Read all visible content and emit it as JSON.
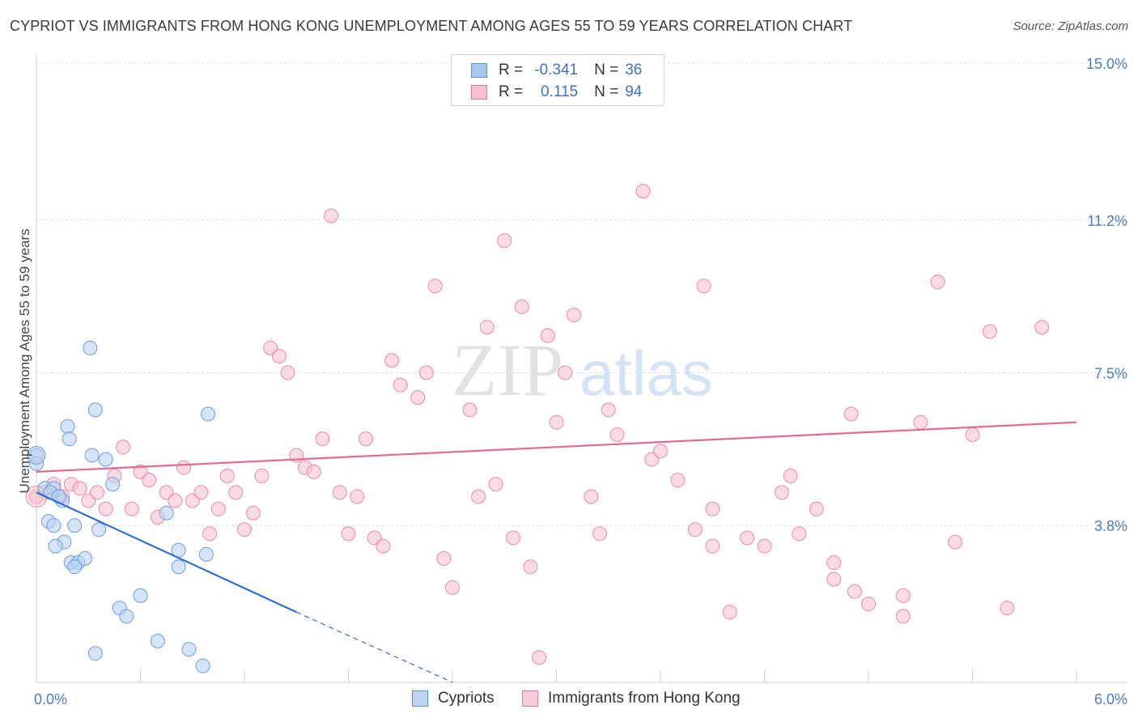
{
  "title": "CYPRIOT VS IMMIGRANTS FROM HONG KONG UNEMPLOYMENT AMONG AGES 55 TO 59 YEARS CORRELATION CHART",
  "source": "Source: ZipAtlas.com",
  "watermark": {
    "zip": "ZIP",
    "atlas": "atlas"
  },
  "legend": {
    "rows": [
      {
        "r_label": "R =",
        "r_value": "-0.341",
        "n_label": "N =",
        "n_value": "36",
        "color": "#a9c8f0",
        "border": "#5b8fd6"
      },
      {
        "r_label": "R =",
        "r_value": "0.115",
        "n_label": "N =",
        "n_value": "94",
        "color": "#f7bfd0",
        "border": "#e07a9a"
      }
    ]
  },
  "bottom_legend": [
    {
      "label": "Cypriots",
      "color": "#bcd4f2",
      "border": "#5b8fd6"
    },
    {
      "label": "Immigrants from Hong Kong",
      "color": "#f9cad8",
      "border": "#e07a9a"
    }
  ],
  "chart_data": {
    "type": "scatter",
    "title": "CYPRIOT VS IMMIGRANTS FROM HONG KONG UNEMPLOYMENT AMONG AGES 55 TO 59 YEARS CORRELATION CHART",
    "xlabel": "",
    "ylabel": "Unemployment Among Ages 55 to 59 years",
    "xlim": [
      0.0,
      6.0
    ],
    "ylim": [
      0.0,
      15.0
    ],
    "x_tick_labels": [
      "0.0%",
      "6.0%"
    ],
    "y_ticks": [
      3.8,
      7.5,
      11.2,
      15.0
    ],
    "y_tick_labels": [
      "3.8%",
      "7.5%",
      "11.2%",
      "15.0%"
    ],
    "grid": true,
    "series": [
      {
        "name": "Cypriots",
        "color": "#6a9ee0",
        "fill": "#b9d2f2",
        "trend": {
          "x": [
            0.0,
            1.5
          ],
          "y": [
            4.6,
            1.7
          ],
          "dashed_to": [
            2.4,
            0.0
          ],
          "color": "#2f6fcf"
        },
        "points": [
          [
            0.0,
            5.5
          ],
          [
            0.0,
            5.3
          ],
          [
            0.05,
            4.7
          ],
          [
            0.1,
            4.7
          ],
          [
            0.08,
            4.6
          ],
          [
            0.15,
            4.4
          ],
          [
            0.18,
            6.2
          ],
          [
            0.19,
            5.9
          ],
          [
            0.31,
            8.1
          ],
          [
            0.34,
            6.6
          ],
          [
            0.32,
            5.5
          ],
          [
            0.4,
            5.4
          ],
          [
            0.44,
            4.8
          ],
          [
            0.22,
            3.8
          ],
          [
            0.07,
            3.9
          ],
          [
            0.1,
            3.8
          ],
          [
            0.36,
            3.7
          ],
          [
            0.16,
            3.4
          ],
          [
            0.11,
            3.3
          ],
          [
            0.2,
            2.9
          ],
          [
            0.24,
            2.9
          ],
          [
            0.28,
            3.0
          ],
          [
            0.22,
            2.8
          ],
          [
            0.82,
            3.2
          ],
          [
            0.98,
            3.1
          ],
          [
            0.99,
            6.5
          ],
          [
            0.75,
            4.1
          ],
          [
            0.6,
            2.1
          ],
          [
            0.82,
            2.8
          ],
          [
            0.48,
            1.8
          ],
          [
            0.52,
            1.6
          ],
          [
            0.7,
            1.0
          ],
          [
            0.34,
            0.7
          ],
          [
            0.88,
            0.8
          ],
          [
            0.96,
            0.4
          ],
          [
            0.13,
            4.5
          ]
        ]
      },
      {
        "name": "Immigrants from Hong Kong",
        "color": "#e88aa6",
        "fill": "#f6c3d2",
        "trend": {
          "x": [
            0.0,
            6.0
          ],
          "y": [
            5.1,
            6.3
          ],
          "color": "#e06a92"
        },
        "points": [
          [
            0.0,
            4.5
          ],
          [
            0.05,
            4.6
          ],
          [
            0.1,
            4.8
          ],
          [
            0.15,
            4.5
          ],
          [
            0.2,
            4.8
          ],
          [
            0.25,
            4.7
          ],
          [
            0.3,
            4.4
          ],
          [
            0.35,
            4.6
          ],
          [
            0.4,
            4.2
          ],
          [
            0.45,
            5.0
          ],
          [
            0.5,
            5.7
          ],
          [
            0.55,
            4.2
          ],
          [
            0.6,
            5.1
          ],
          [
            0.65,
            4.9
          ],
          [
            0.7,
            4.0
          ],
          [
            0.75,
            4.6
          ],
          [
            0.8,
            4.4
          ],
          [
            0.85,
            5.2
          ],
          [
            0.9,
            4.4
          ],
          [
            0.95,
            4.6
          ],
          [
            1.0,
            3.6
          ],
          [
            1.05,
            4.2
          ],
          [
            1.1,
            5.0
          ],
          [
            1.15,
            4.6
          ],
          [
            1.2,
            3.7
          ],
          [
            1.25,
            4.1
          ],
          [
            1.3,
            5.0
          ],
          [
            1.35,
            8.1
          ],
          [
            1.4,
            7.9
          ],
          [
            1.45,
            7.5
          ],
          [
            1.5,
            5.5
          ],
          [
            1.55,
            5.2
          ],
          [
            1.6,
            5.1
          ],
          [
            1.65,
            5.9
          ],
          [
            1.7,
            11.3
          ],
          [
            1.75,
            4.6
          ],
          [
            1.8,
            3.6
          ],
          [
            1.85,
            4.5
          ],
          [
            1.9,
            5.9
          ],
          [
            1.95,
            3.5
          ],
          [
            2.0,
            3.3
          ],
          [
            2.05,
            7.8
          ],
          [
            2.1,
            7.2
          ],
          [
            2.2,
            6.9
          ],
          [
            2.25,
            7.5
          ],
          [
            2.3,
            9.6
          ],
          [
            2.35,
            3.0
          ],
          [
            2.4,
            2.3
          ],
          [
            2.5,
            6.6
          ],
          [
            2.55,
            4.5
          ],
          [
            2.6,
            8.6
          ],
          [
            2.65,
            4.8
          ],
          [
            2.7,
            10.7
          ],
          [
            2.75,
            3.5
          ],
          [
            2.8,
            9.1
          ],
          [
            2.85,
            2.8
          ],
          [
            2.9,
            0.6
          ],
          [
            2.95,
            8.4
          ],
          [
            3.0,
            6.3
          ],
          [
            3.05,
            7.5
          ],
          [
            3.1,
            8.9
          ],
          [
            3.2,
            4.5
          ],
          [
            3.25,
            3.6
          ],
          [
            3.3,
            6.6
          ],
          [
            3.35,
            6.0
          ],
          [
            3.5,
            11.9
          ],
          [
            3.55,
            5.4
          ],
          [
            3.6,
            5.6
          ],
          [
            3.7,
            4.9
          ],
          [
            3.8,
            3.7
          ],
          [
            3.85,
            9.6
          ],
          [
            3.9,
            4.2
          ],
          [
            4.0,
            1.7
          ],
          [
            4.1,
            3.5
          ],
          [
            4.2,
            3.3
          ],
          [
            4.3,
            4.6
          ],
          [
            4.35,
            5.0
          ],
          [
            4.4,
            3.6
          ],
          [
            4.5,
            4.2
          ],
          [
            4.6,
            2.9
          ],
          [
            4.7,
            6.5
          ],
          [
            4.8,
            1.9
          ],
          [
            5.0,
            2.1
          ],
          [
            5.1,
            6.3
          ],
          [
            5.2,
            9.7
          ],
          [
            5.3,
            3.4
          ],
          [
            5.4,
            6.0
          ],
          [
            5.5,
            8.5
          ],
          [
            5.6,
            1.8
          ],
          [
            5.8,
            8.6
          ],
          [
            4.6,
            2.5
          ],
          [
            3.9,
            3.3
          ],
          [
            5.0,
            1.6
          ],
          [
            4.72,
            2.2
          ]
        ]
      }
    ]
  }
}
